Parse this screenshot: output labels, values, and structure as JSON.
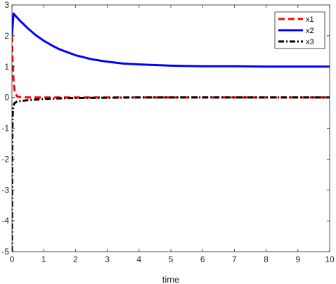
{
  "chart_data": {
    "type": "line",
    "title": "",
    "xlabel": "time",
    "ylabel": "",
    "xlim": [
      0,
      10
    ],
    "ylim": [
      -5,
      3
    ],
    "xticks": [
      0,
      1,
      2,
      3,
      4,
      5,
      6,
      7,
      8,
      9,
      10
    ],
    "yticks": [
      -5,
      -4,
      -3,
      -2,
      -1,
      0,
      1,
      2,
      3
    ],
    "legend_position": "top-right",
    "grid": false,
    "series": [
      {
        "name": "x1",
        "color": "#ff0000",
        "style": "dashed",
        "x": [
          0,
          0.02,
          0.05,
          0.08,
          0.12,
          0.16,
          0.2,
          0.3,
          0.5,
          1,
          2,
          3,
          4,
          5,
          6,
          7,
          8,
          9,
          10
        ],
        "y": [
          2.0,
          1.2,
          0.55,
          0.25,
          0.1,
          0.04,
          0.02,
          0.01,
          0.0,
          0.0,
          0.0,
          0.0,
          0.0,
          0.0,
          0.0,
          0.0,
          0.0,
          0.0,
          0.0
        ]
      },
      {
        "name": "x2",
        "color": "#0000ff",
        "style": "solid",
        "x": [
          0,
          0.05,
          0.1,
          0.25,
          0.5,
          0.75,
          1,
          1.25,
          1.5,
          2,
          2.5,
          3,
          3.5,
          4,
          4.5,
          5,
          5.5,
          6,
          7,
          8,
          9,
          10
        ],
        "y": [
          2.0,
          2.72,
          2.66,
          2.49,
          2.24,
          2.02,
          1.84,
          1.69,
          1.56,
          1.37,
          1.24,
          1.16,
          1.1,
          1.07,
          1.05,
          1.03,
          1.02,
          1.01,
          1.01,
          1.0,
          1.0,
          1.0
        ]
      },
      {
        "name": "x3",
        "color": "#000000",
        "style": "dashdot",
        "x": [
          0,
          0.01,
          0.02,
          0.04,
          0.07,
          0.1,
          0.15,
          0.25,
          0.5,
          1,
          1.5,
          2,
          3,
          4,
          5,
          6,
          7,
          8,
          9,
          10
        ],
        "y": [
          -5.0,
          -1.5,
          -0.6,
          -0.3,
          -0.2,
          -0.17,
          -0.14,
          -0.12,
          -0.09,
          -0.05,
          -0.03,
          -0.02,
          -0.01,
          0.0,
          0.0,
          0.0,
          0.0,
          0.0,
          0.0,
          0.0
        ]
      }
    ]
  }
}
